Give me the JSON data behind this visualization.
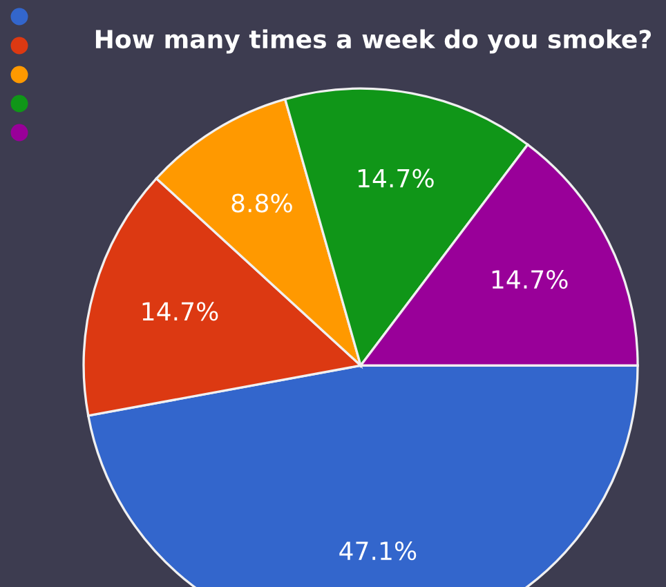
{
  "chart_data": {
    "type": "pie",
    "title": "How many times a week do you smoke?",
    "categories": [
      null,
      null,
      null,
      null,
      null
    ],
    "values": [
      47.1,
      14.7,
      8.8,
      14.7,
      14.7
    ],
    "value_labels": [
      "47.1%",
      "14.7%",
      "8.8%",
      "14.7%",
      "14.7%"
    ],
    "colors": [
      "#3366cc",
      "#dc3912",
      "#ff9900",
      "#109618",
      "#990099"
    ]
  }
}
